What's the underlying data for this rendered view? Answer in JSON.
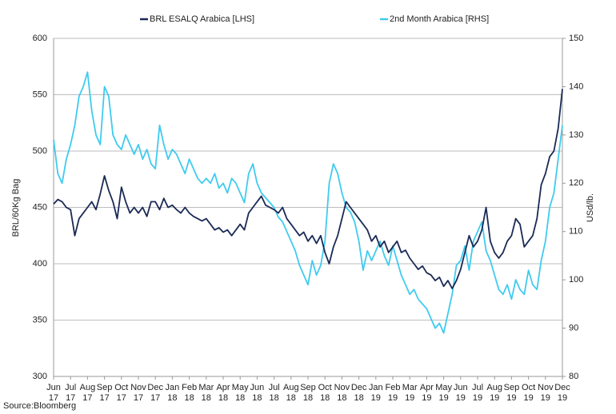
{
  "chart_data": {
    "type": "line",
    "categories": [
      "Jun 17",
      null,
      null,
      null,
      "Jul 17",
      null,
      null,
      null,
      "Aug 17",
      null,
      null,
      null,
      "Sep 17",
      null,
      null,
      null,
      "Oct 17",
      null,
      null,
      null,
      "Nov 17",
      null,
      null,
      null,
      "Dec 17",
      null,
      null,
      null,
      "Jan 18",
      null,
      null,
      null,
      "Feb 18",
      null,
      null,
      null,
      "Mar 18",
      null,
      null,
      null,
      "Apr 18",
      null,
      null,
      null,
      "May 18",
      null,
      null,
      null,
      "Jun 18",
      null,
      null,
      null,
      "Jul 18",
      null,
      null,
      null,
      "Aug 18",
      null,
      null,
      null,
      "Sep 18",
      null,
      null,
      null,
      "Oct 18",
      null,
      null,
      null,
      "Nov 18",
      null,
      null,
      null,
      "Dec 18",
      null,
      null,
      null,
      "Jan 19",
      null,
      null,
      null,
      "Feb 19",
      null,
      null,
      null,
      "Mar 19",
      null,
      null,
      null,
      "Apr 19",
      null,
      null,
      null,
      "May 19",
      null,
      null,
      null,
      "Jun 19",
      null,
      null,
      null,
      "Jul 19",
      null,
      null,
      null,
      "Aug 19",
      null,
      null,
      null,
      "Sep 19",
      null,
      null,
      null,
      "Oct 19",
      null,
      null,
      null,
      "Nov 19",
      null,
      null,
      null,
      "Dec 19"
    ],
    "series": [
      {
        "name": "BRL ESALQ Arabica [LHS]",
        "color": "#1b2a55",
        "axis": "y",
        "values": [
          453,
          457,
          455,
          450,
          448,
          425,
          440,
          445,
          450,
          455,
          448,
          462,
          478,
          465,
          455,
          440,
          468,
          455,
          445,
          450,
          445,
          450,
          442,
          455,
          455,
          448,
          458,
          450,
          452,
          448,
          445,
          450,
          445,
          442,
          440,
          438,
          440,
          435,
          430,
          432,
          428,
          430,
          425,
          430,
          435,
          430,
          445,
          450,
          455,
          460,
          452,
          450,
          448,
          445,
          450,
          440,
          435,
          430,
          425,
          428,
          420,
          425,
          418,
          425,
          410,
          400,
          415,
          425,
          440,
          455,
          450,
          445,
          440,
          435,
          430,
          420,
          425,
          415,
          420,
          410,
          415,
          420,
          410,
          412,
          405,
          400,
          395,
          398,
          392,
          390,
          385,
          388,
          380,
          385,
          378,
          385,
          395,
          410,
          425,
          415,
          420,
          430,
          450,
          420,
          410,
          405,
          410,
          420,
          425,
          440,
          435,
          415,
          420,
          425,
          440,
          470,
          480,
          495,
          500,
          520,
          555
        ]
      },
      {
        "name": "2nd Month Arabica [RHS]",
        "color": "#3fcbef",
        "axis": "y2",
        "values": [
          129,
          122,
          120,
          125,
          128,
          132,
          138,
          140,
          143,
          135,
          130,
          128,
          140,
          138,
          130,
          128,
          127,
          130,
          128,
          126,
          128,
          125,
          127,
          124,
          123,
          132,
          128,
          125,
          127,
          126,
          124,
          122,
          125,
          123,
          121,
          120,
          121,
          120,
          122,
          119,
          120,
          118,
          121,
          120,
          118,
          116,
          122,
          124,
          120,
          118,
          117,
          116,
          115,
          113,
          112,
          110,
          108,
          106,
          103,
          101,
          99,
          104,
          101,
          103,
          108,
          120,
          124,
          122,
          118,
          115,
          114,
          112,
          108,
          102,
          106,
          104,
          106,
          108,
          105,
          103,
          107,
          104,
          101,
          99,
          97,
          98,
          96,
          95,
          94,
          92,
          90,
          91,
          89,
          93,
          97,
          103,
          104,
          107,
          102,
          108,
          110,
          112,
          106,
          104,
          101,
          98,
          97,
          99,
          96,
          100,
          98,
          97,
          102,
          99,
          98,
          104,
          108,
          115,
          118,
          125,
          132
        ]
      }
    ],
    "ylabel": "BRL/60Kg Bag",
    "y2label": "USd/lb.",
    "ylim": [
      300,
      600
    ],
    "yticks": [
      300,
      350,
      400,
      450,
      500,
      550,
      600
    ],
    "y2lim": [
      80,
      150
    ],
    "y2ticks": [
      80,
      90,
      100,
      110,
      120,
      130,
      140,
      150
    ],
    "grid": true,
    "legend": "top",
    "source": "Source:Bloomberg"
  }
}
